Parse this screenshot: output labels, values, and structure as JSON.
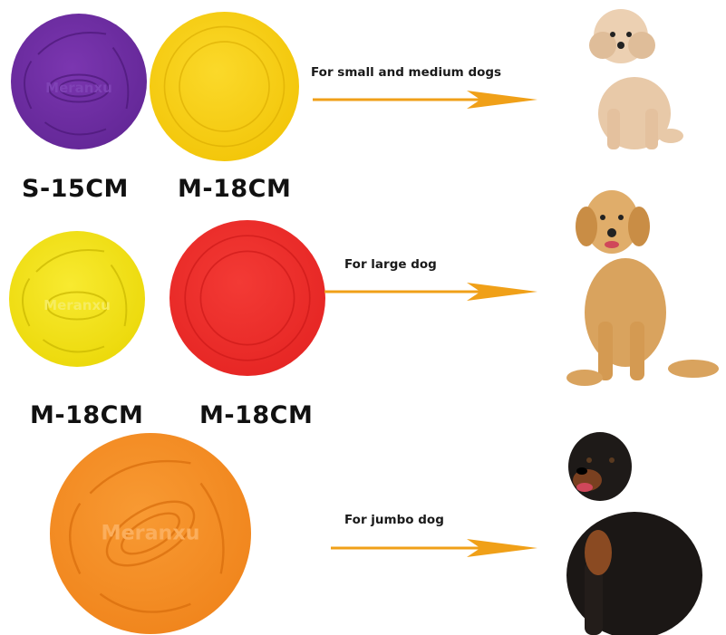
{
  "brand_logo_text": "Meranxu",
  "rows": [
    {
      "usage": "For small and medium dogs",
      "discs": [
        {
          "size_label": "S-15CM",
          "color": "#6a2a9c"
        },
        {
          "size_label": "M-18CM",
          "color": "#f7cf1a"
        }
      ],
      "dog": "poodle"
    },
    {
      "usage": "For large dog",
      "discs": [
        {
          "size_label": "M-18CM",
          "color": "#f2e21c"
        },
        {
          "size_label": "M-18CM",
          "color": "#ee2b2a"
        }
      ],
      "dog": "golden-retriever"
    },
    {
      "usage": "For jumbo dog",
      "discs": [
        {
          "color": "#f58c25"
        }
      ],
      "dog": "rottweiler"
    }
  ],
  "arrow_color": "#f0a018"
}
